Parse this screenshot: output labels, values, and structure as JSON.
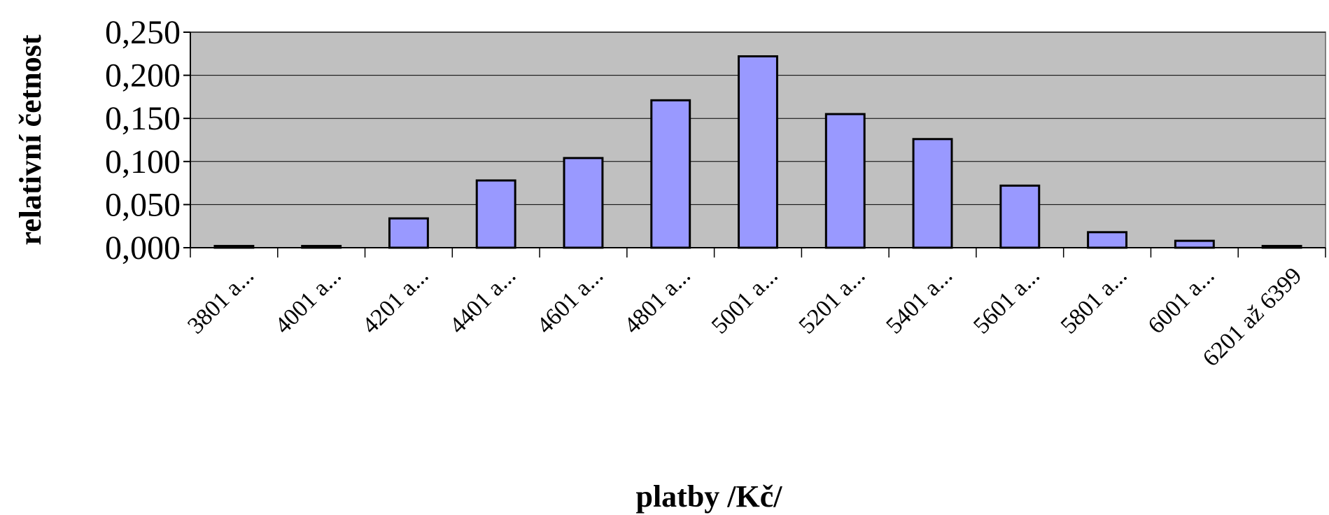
{
  "chart_data": {
    "type": "bar",
    "title": "",
    "xlabel": "platby /Kč/",
    "ylabel": "relativní četnost",
    "ylim": [
      0,
      0.25
    ],
    "yticks": [
      "0,000",
      "0,050",
      "0,100",
      "0,150",
      "0,200",
      "0,250"
    ],
    "grid": true,
    "categories": [
      "3801 a...",
      "4001 a...",
      "4201 a...",
      "4401 a...",
      "4601 a...",
      "4801 a...",
      "5001 a...",
      "5201 a...",
      "5401 a...",
      "5601 a...",
      "5801 a...",
      "6001 a...",
      "6201 až 6399"
    ],
    "values": [
      0.002,
      0.002,
      0.034,
      0.078,
      0.104,
      0.171,
      0.222,
      0.155,
      0.126,
      0.072,
      0.018,
      0.008,
      0.002
    ],
    "colors": {
      "plot_background": "#c0c0c0",
      "bar_fill": "#9999ff",
      "bar_stroke": "#000000",
      "gridline": "#000000"
    }
  }
}
